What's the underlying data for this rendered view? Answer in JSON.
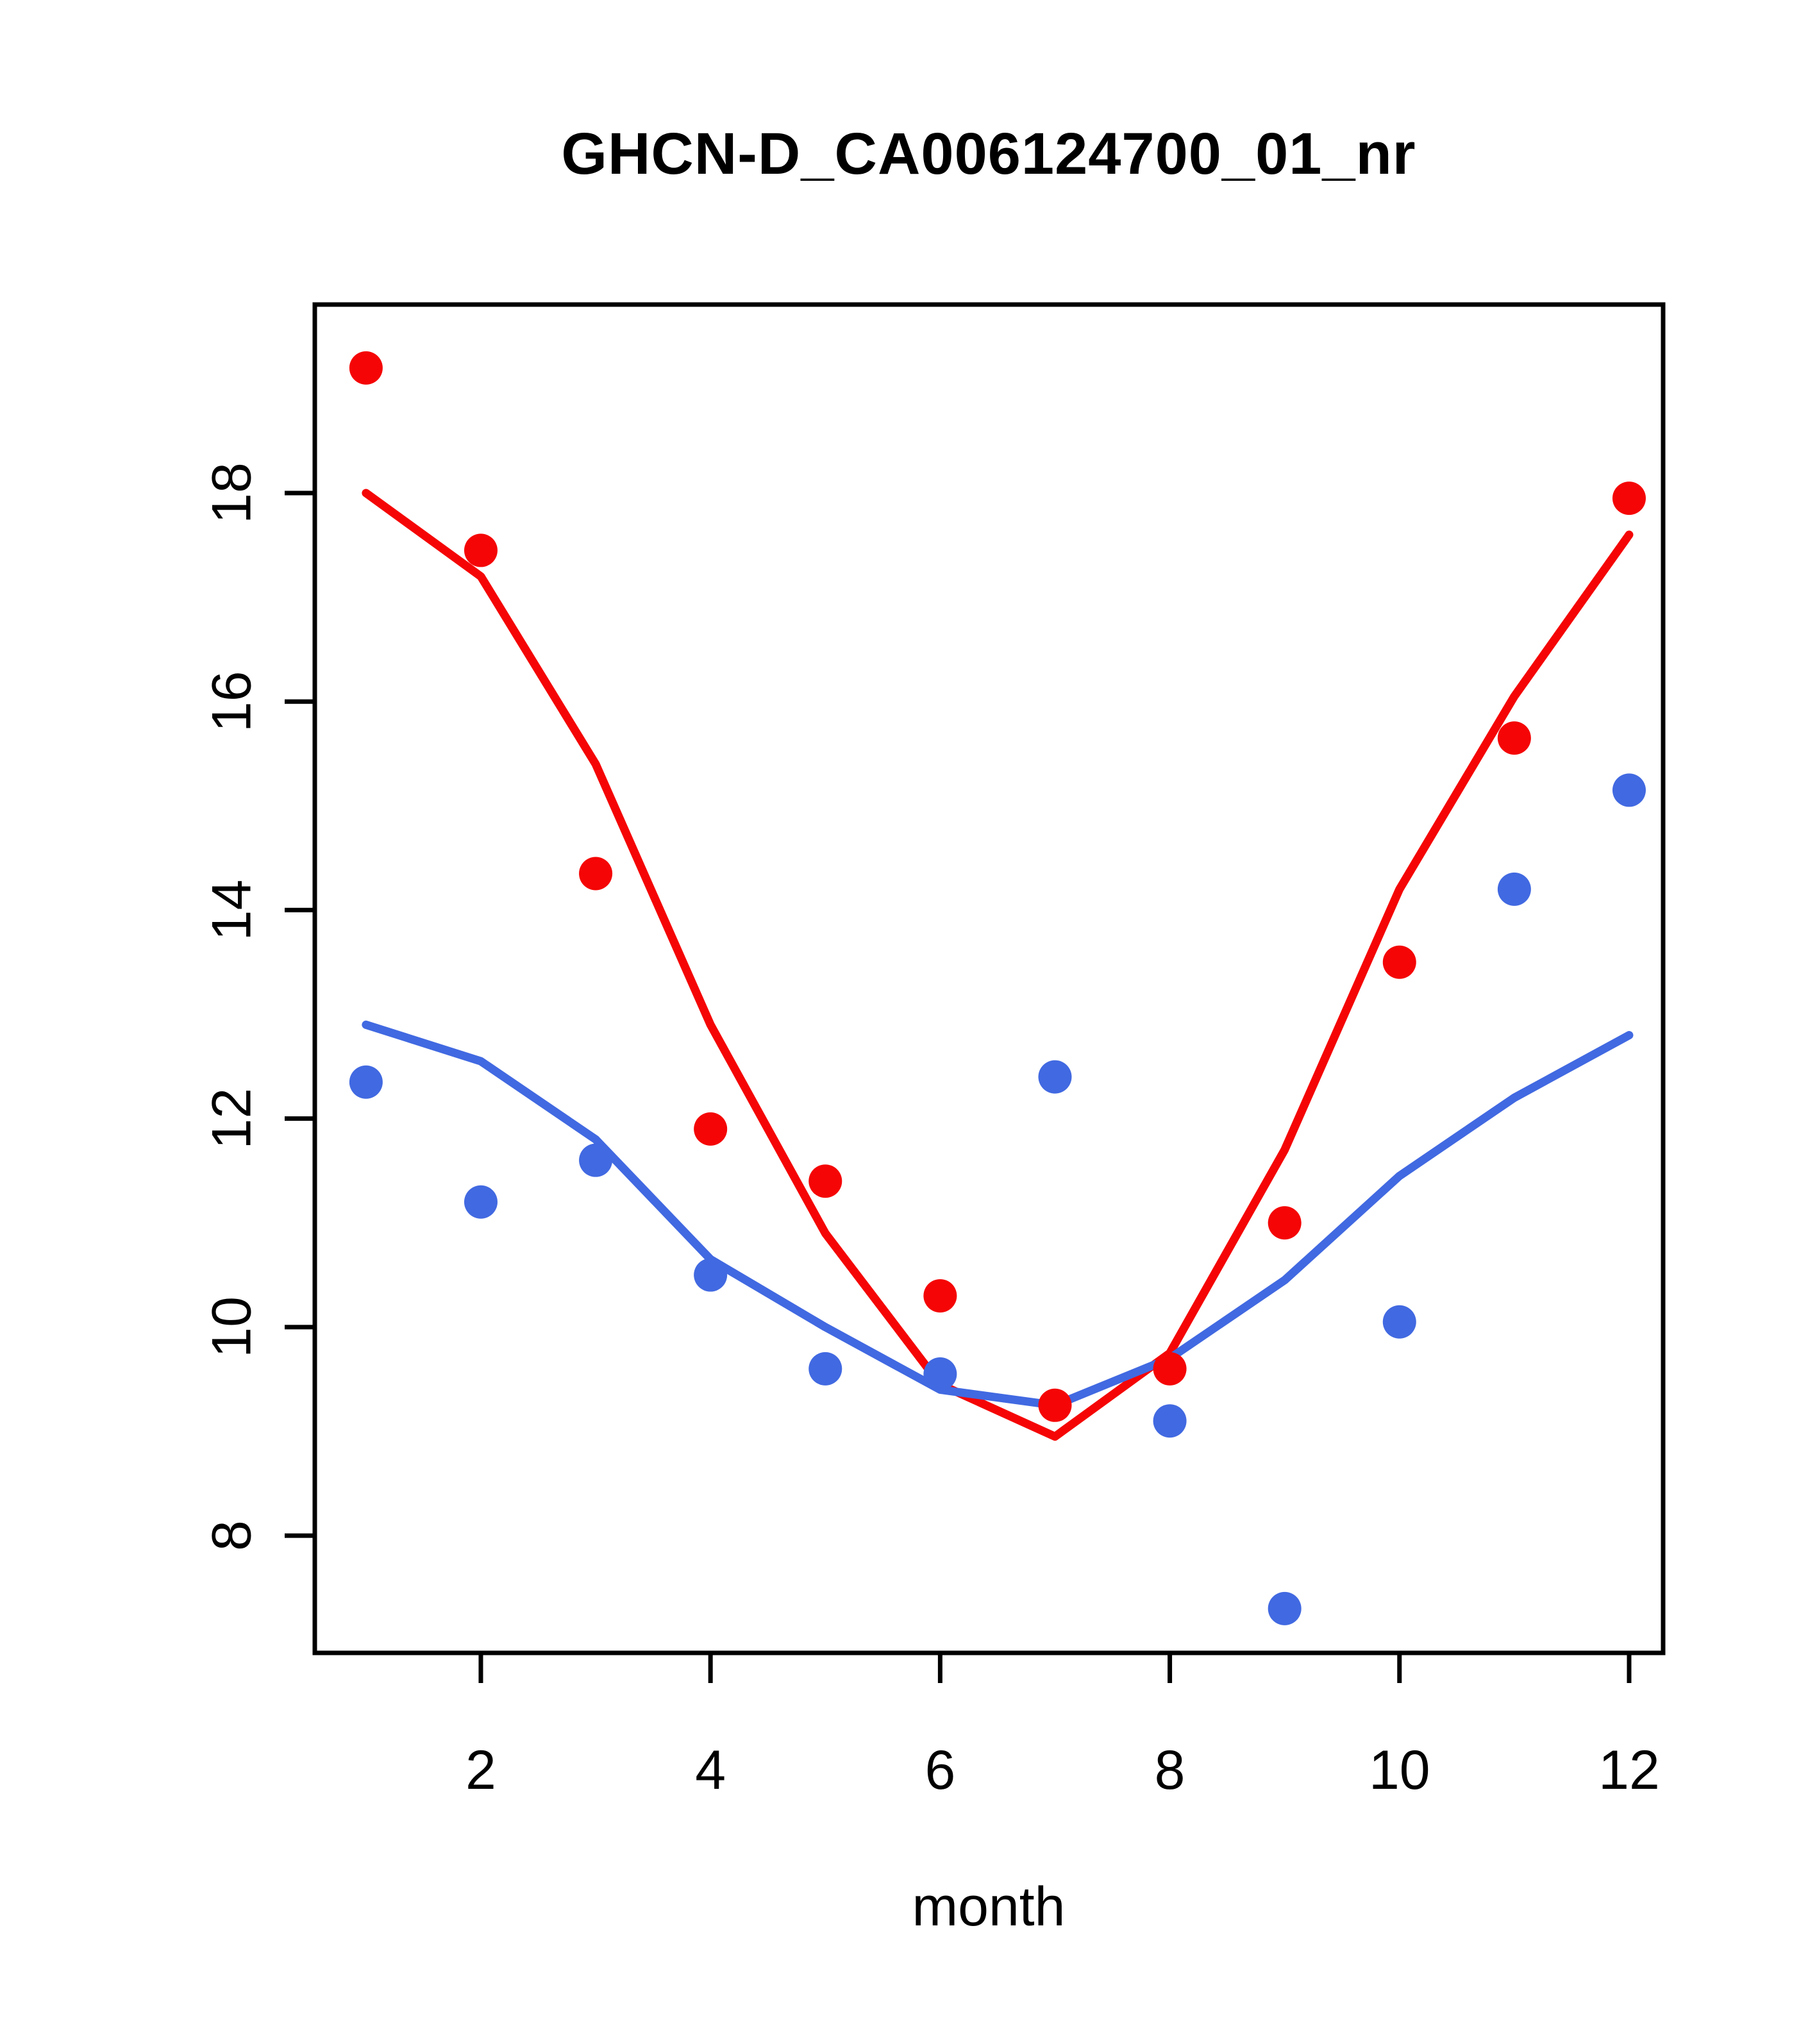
{
  "chart_data": {
    "type": "scatter",
    "title": "GHCN-D_CA006124700_01_nr",
    "xlabel": "month",
    "ylabel": "",
    "x": [
      1,
      2,
      3,
      4,
      5,
      6,
      7,
      8,
      9,
      10,
      11,
      12
    ],
    "x_ticks": [
      2,
      4,
      6,
      8,
      10,
      12
    ],
    "y_ticks": [
      8,
      10,
      12,
      14,
      16,
      18
    ],
    "xlim": [
      0.554,
      12.296
    ],
    "ylim": [
      6.875,
      19.808
    ],
    "grid": false,
    "legend": "none",
    "series": [
      {
        "name": "red-points",
        "kind": "scatter",
        "color": "#f50505",
        "values": [
          19.2,
          17.45,
          14.35,
          11.9,
          11.4,
          10.3,
          9.25,
          9.6,
          11.0,
          13.5,
          15.65,
          17.95
        ]
      },
      {
        "name": "red-fit-line",
        "kind": "line",
        "color": "#f50505",
        "values": [
          18.0,
          17.2,
          15.4,
          12.9,
          10.9,
          9.45,
          8.95,
          9.75,
          11.7,
          14.2,
          16.05,
          17.6
        ]
      },
      {
        "name": "blue-points",
        "kind": "scatter",
        "color": "#4169e1",
        "values": [
          12.35,
          11.2,
          11.6,
          10.5,
          9.6,
          9.55,
          12.4,
          9.1,
          7.3,
          10.05,
          14.2,
          15.15
        ]
      },
      {
        "name": "blue-fit-line",
        "kind": "line",
        "color": "#4169e1",
        "values": [
          12.9,
          12.55,
          11.8,
          10.65,
          10.0,
          9.4,
          9.25,
          9.7,
          10.45,
          11.45,
          12.2,
          12.8
        ]
      }
    ]
  }
}
